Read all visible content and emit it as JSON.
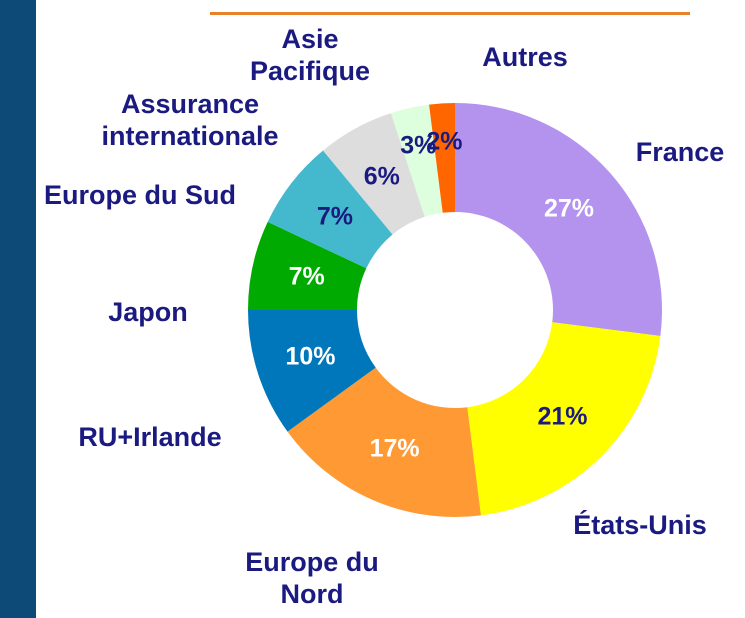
{
  "chart_data": {
    "type": "pie",
    "donut": true,
    "categories": [
      "France",
      "États-Unis",
      "Europe du\nNord",
      "RU+Irlande",
      "Japon",
      "Europe du Sud",
      "Assurance\ninternationale",
      "Asie\nPacifique",
      "Autres"
    ],
    "values": [
      27,
      21,
      17,
      10,
      7,
      7,
      6,
      3,
      2
    ],
    "value_labels": [
      "27%",
      "21%",
      "17%",
      "10%",
      "7%",
      "7%",
      "6%",
      "3%",
      "2%"
    ],
    "colors": [
      "#b393ee",
      "#ffff00",
      "#ff9933",
      "#0077bb",
      "#00aa00",
      "#44b8cc",
      "#dddddd",
      "#ddffdd",
      "#ff6600"
    ],
    "label_colors": [
      "#ffffff",
      "#1a1a80",
      "#ffffff",
      "#ffffff",
      "#ffffff",
      "#1a1a80",
      "#1a1a80",
      "#1a1a80",
      "#1a1a80"
    ]
  }
}
